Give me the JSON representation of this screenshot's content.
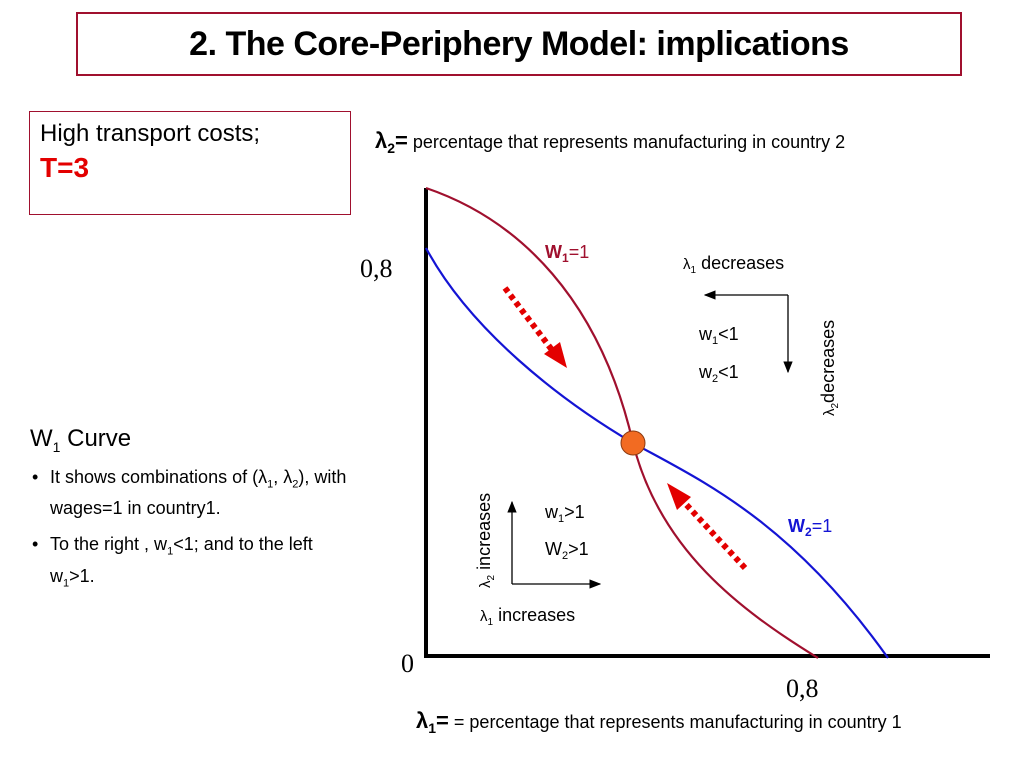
{
  "slide_title": "2. The Core-Periphery Model: implications",
  "condition": {
    "line1": "High transport costs;",
    "line2": "T=3"
  },
  "w1_section": {
    "heading_main": "W",
    "heading_sub": "1",
    "heading_rest": " Curve",
    "bullets": [
      {
        "parts": [
          [
            "t",
            "It shows combinations of (λ"
          ],
          [
            "s",
            "1"
          ],
          [
            "t",
            ", λ"
          ],
          [
            "s",
            "2"
          ],
          [
            "t",
            "), with wages=1 in country1."
          ]
        ]
      },
      {
        "parts": [
          [
            "t",
            "To the right ,  w"
          ],
          [
            "s",
            "1"
          ],
          [
            "t",
            "<1; and to the left w"
          ],
          [
            "s",
            "1"
          ],
          [
            "t",
            ">1."
          ]
        ]
      }
    ]
  },
  "chart": {
    "y_axis_symbol": "λ",
    "y_axis_sub": "2",
    "y_axis_eq": "=",
    "y_axis_desc": " percentage that represents manufacturing in country 2",
    "x_axis_symbol": "λ",
    "x_axis_sub": "1",
    "x_axis_eq": "=",
    "x_axis_desc": " = percentage that represents manufacturing in country 1",
    "y_tick": "0,8",
    "x_tick": "0,8",
    "origin": "0",
    "w1_curve_label": {
      "main": "W",
      "sub": "1",
      "rest": "=1"
    },
    "w2_curve_label": {
      "main": "W",
      "sub": "2",
      "rest": "=1"
    },
    "colors": {
      "w1_curve": "#a0102e",
      "w2_curve": "#1414d4",
      "arrows": "#e30000",
      "equilibrium": "#f26b22",
      "frame": "#a0102e"
    }
  },
  "quadrant_upper_right": {
    "horiz_label": {
      "pre": "λ",
      "sub": "1",
      "post": " decreases"
    },
    "vert_label": {
      "pre": "λ",
      "sub": "2",
      "post": "decreases"
    },
    "line1": {
      "pre": "w",
      "sub": "1",
      "post": "<1"
    },
    "line2": {
      "pre": "w",
      "sub": "2",
      "post": "<1"
    }
  },
  "quadrant_lower_left": {
    "horiz_label": {
      "pre": "λ",
      "sub": "1",
      "post": " increases"
    },
    "vert_label": {
      "pre": "λ",
      "sub": "2",
      "post": " increases"
    },
    "line1": {
      "pre": "w",
      "sub": "1",
      "post": ">1"
    },
    "line2": {
      "pre": "W",
      "sub": "2",
      "post": ">1"
    }
  }
}
